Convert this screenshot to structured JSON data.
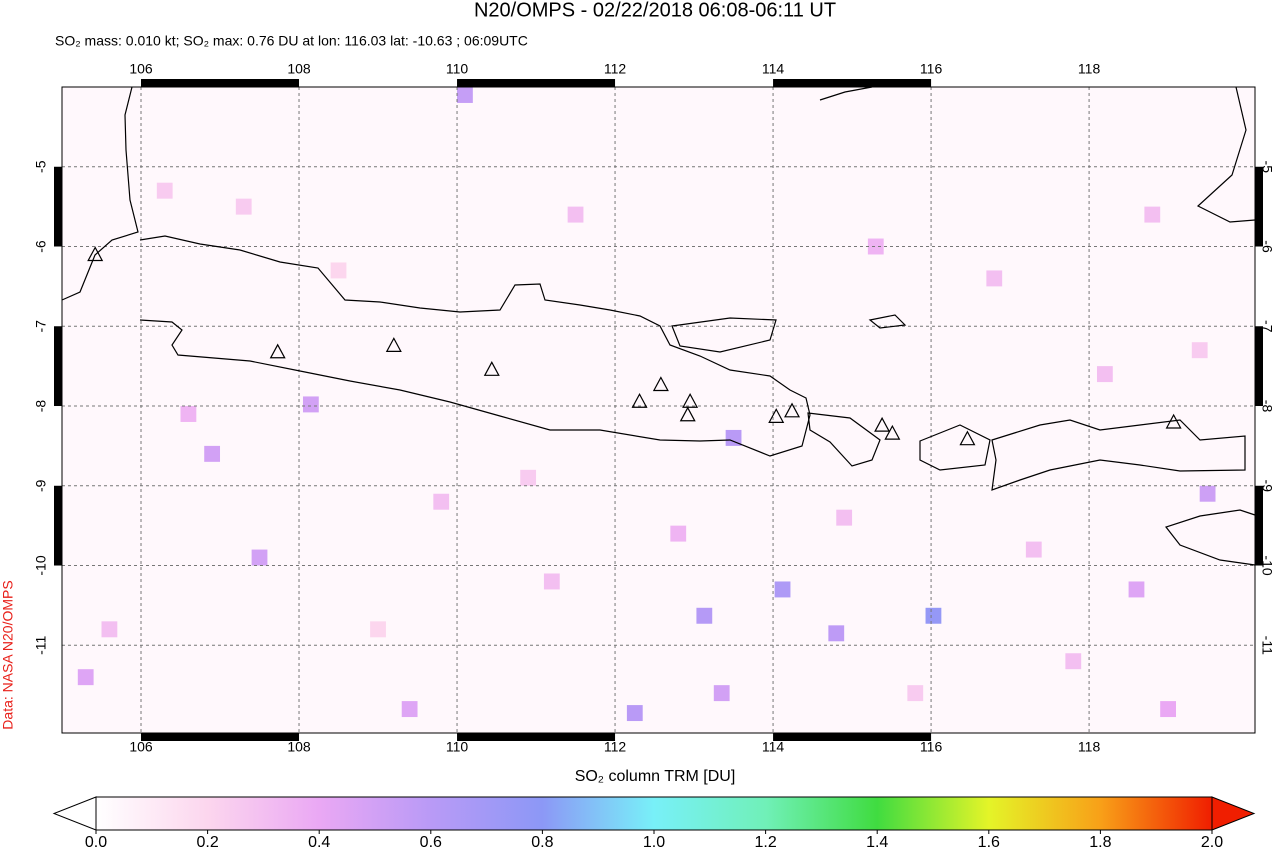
{
  "chart_data": {
    "type": "map",
    "title": "N20/OMPS - 02/22/2018 06:08-06:11 UT",
    "subtitle": "SO₂ mass: 0.010 kt; SO₂ max: 0.76 DU at lon: 116.03 lat: -10.63 ; 06:09UTC",
    "side_label": "Data: NASA N20/OMPS",
    "colorbar_label": "SO₂ column TRM [DU]",
    "xlim": [
      105,
      120.1
    ],
    "ylim": [
      -12.1,
      -4
    ],
    "xticks": [
      106,
      108,
      110,
      112,
      114,
      116,
      118
    ],
    "yticks": [
      -5,
      -6,
      -7,
      -8,
      -9,
      -10,
      -11
    ],
    "grid": true,
    "colorbar_lim": [
      0,
      2
    ],
    "colorbar_ticks": [
      {
        "value": 0,
        "label": "0.0"
      },
      {
        "value": 0.2,
        "label": "0.2"
      },
      {
        "value": 0.4,
        "label": "0.4"
      },
      {
        "value": 0.6,
        "label": "0.6"
      },
      {
        "value": 0.8,
        "label": "0.8"
      },
      {
        "value": 1,
        "label": "1.0"
      },
      {
        "value": 1.2,
        "label": "1.2"
      },
      {
        "value": 1.4,
        "label": "1.4"
      },
      {
        "value": 1.6,
        "label": "1.6"
      },
      {
        "value": 1.8,
        "label": "1.8"
      },
      {
        "value": 2,
        "label": "2.0"
      }
    ],
    "colormap": [
      "#ffffff",
      "#fcd6ee",
      "#eaa8f4",
      "#b99af6",
      "#8c98f6",
      "#78f0f8",
      "#70f0b8",
      "#40dc40",
      "#e4f428",
      "#f8a018",
      "#f01e00"
    ],
    "pixels": {
      "lon": [
        116.03,
        113.13,
        114.12,
        114.8,
        112.25,
        108.15,
        106.9,
        113.5,
        110.1,
        119.5,
        107.5,
        105.3,
        109.4,
        113.35,
        118.6,
        119.0,
        106.3,
        107.3,
        108.5,
        111.5,
        115.3,
        116.8,
        118.8,
        109.8,
        111.2,
        117.3,
        105.6,
        110.9,
        114.9,
        117.8,
        112.8,
        106.6,
        118.2,
        119.4,
        109.0,
        115.8
      ],
      "lat": [
        -10.63,
        -10.63,
        -10.3,
        -10.85,
        -11.85,
        -7.98,
        -8.6,
        -8.4,
        -4.1,
        -9.1,
        -9.9,
        -11.4,
        -11.8,
        -11.6,
        -10.3,
        -11.8,
        -5.3,
        -5.5,
        -6.3,
        -5.6,
        -6.0,
        -6.4,
        -5.6,
        -9.2,
        -10.2,
        -9.8,
        -10.8,
        -8.9,
        -9.4,
        -11.2,
        -9.6,
        -8.1,
        -7.6,
        -7.3,
        -10.8,
        -11.6
      ],
      "values": [
        0.76,
        0.62,
        0.65,
        0.58,
        0.6,
        0.5,
        0.5,
        0.6,
        0.55,
        0.52,
        0.5,
        0.45,
        0.45,
        0.5,
        0.45,
        0.4,
        0.25,
        0.25,
        0.2,
        0.3,
        0.35,
        0.3,
        0.3,
        0.3,
        0.3,
        0.3,
        0.3,
        0.25,
        0.3,
        0.3,
        0.35,
        0.35,
        0.3,
        0.25,
        0.2,
        0.25
      ]
    },
    "volcanoes": {
      "lon": [
        105.42,
        107.73,
        109.2,
        110.44,
        112.31,
        112.58,
        112.95,
        112.92,
        114.04,
        114.24,
        115.38,
        115.51,
        116.46,
        119.07
      ],
      "lat": [
        -6.1,
        -7.32,
        -7.24,
        -7.54,
        -7.94,
        -7.73,
        -7.94,
        -8.11,
        -8.13,
        -8.06,
        -8.24,
        -8.34,
        -8.41,
        -8.2
      ]
    }
  }
}
